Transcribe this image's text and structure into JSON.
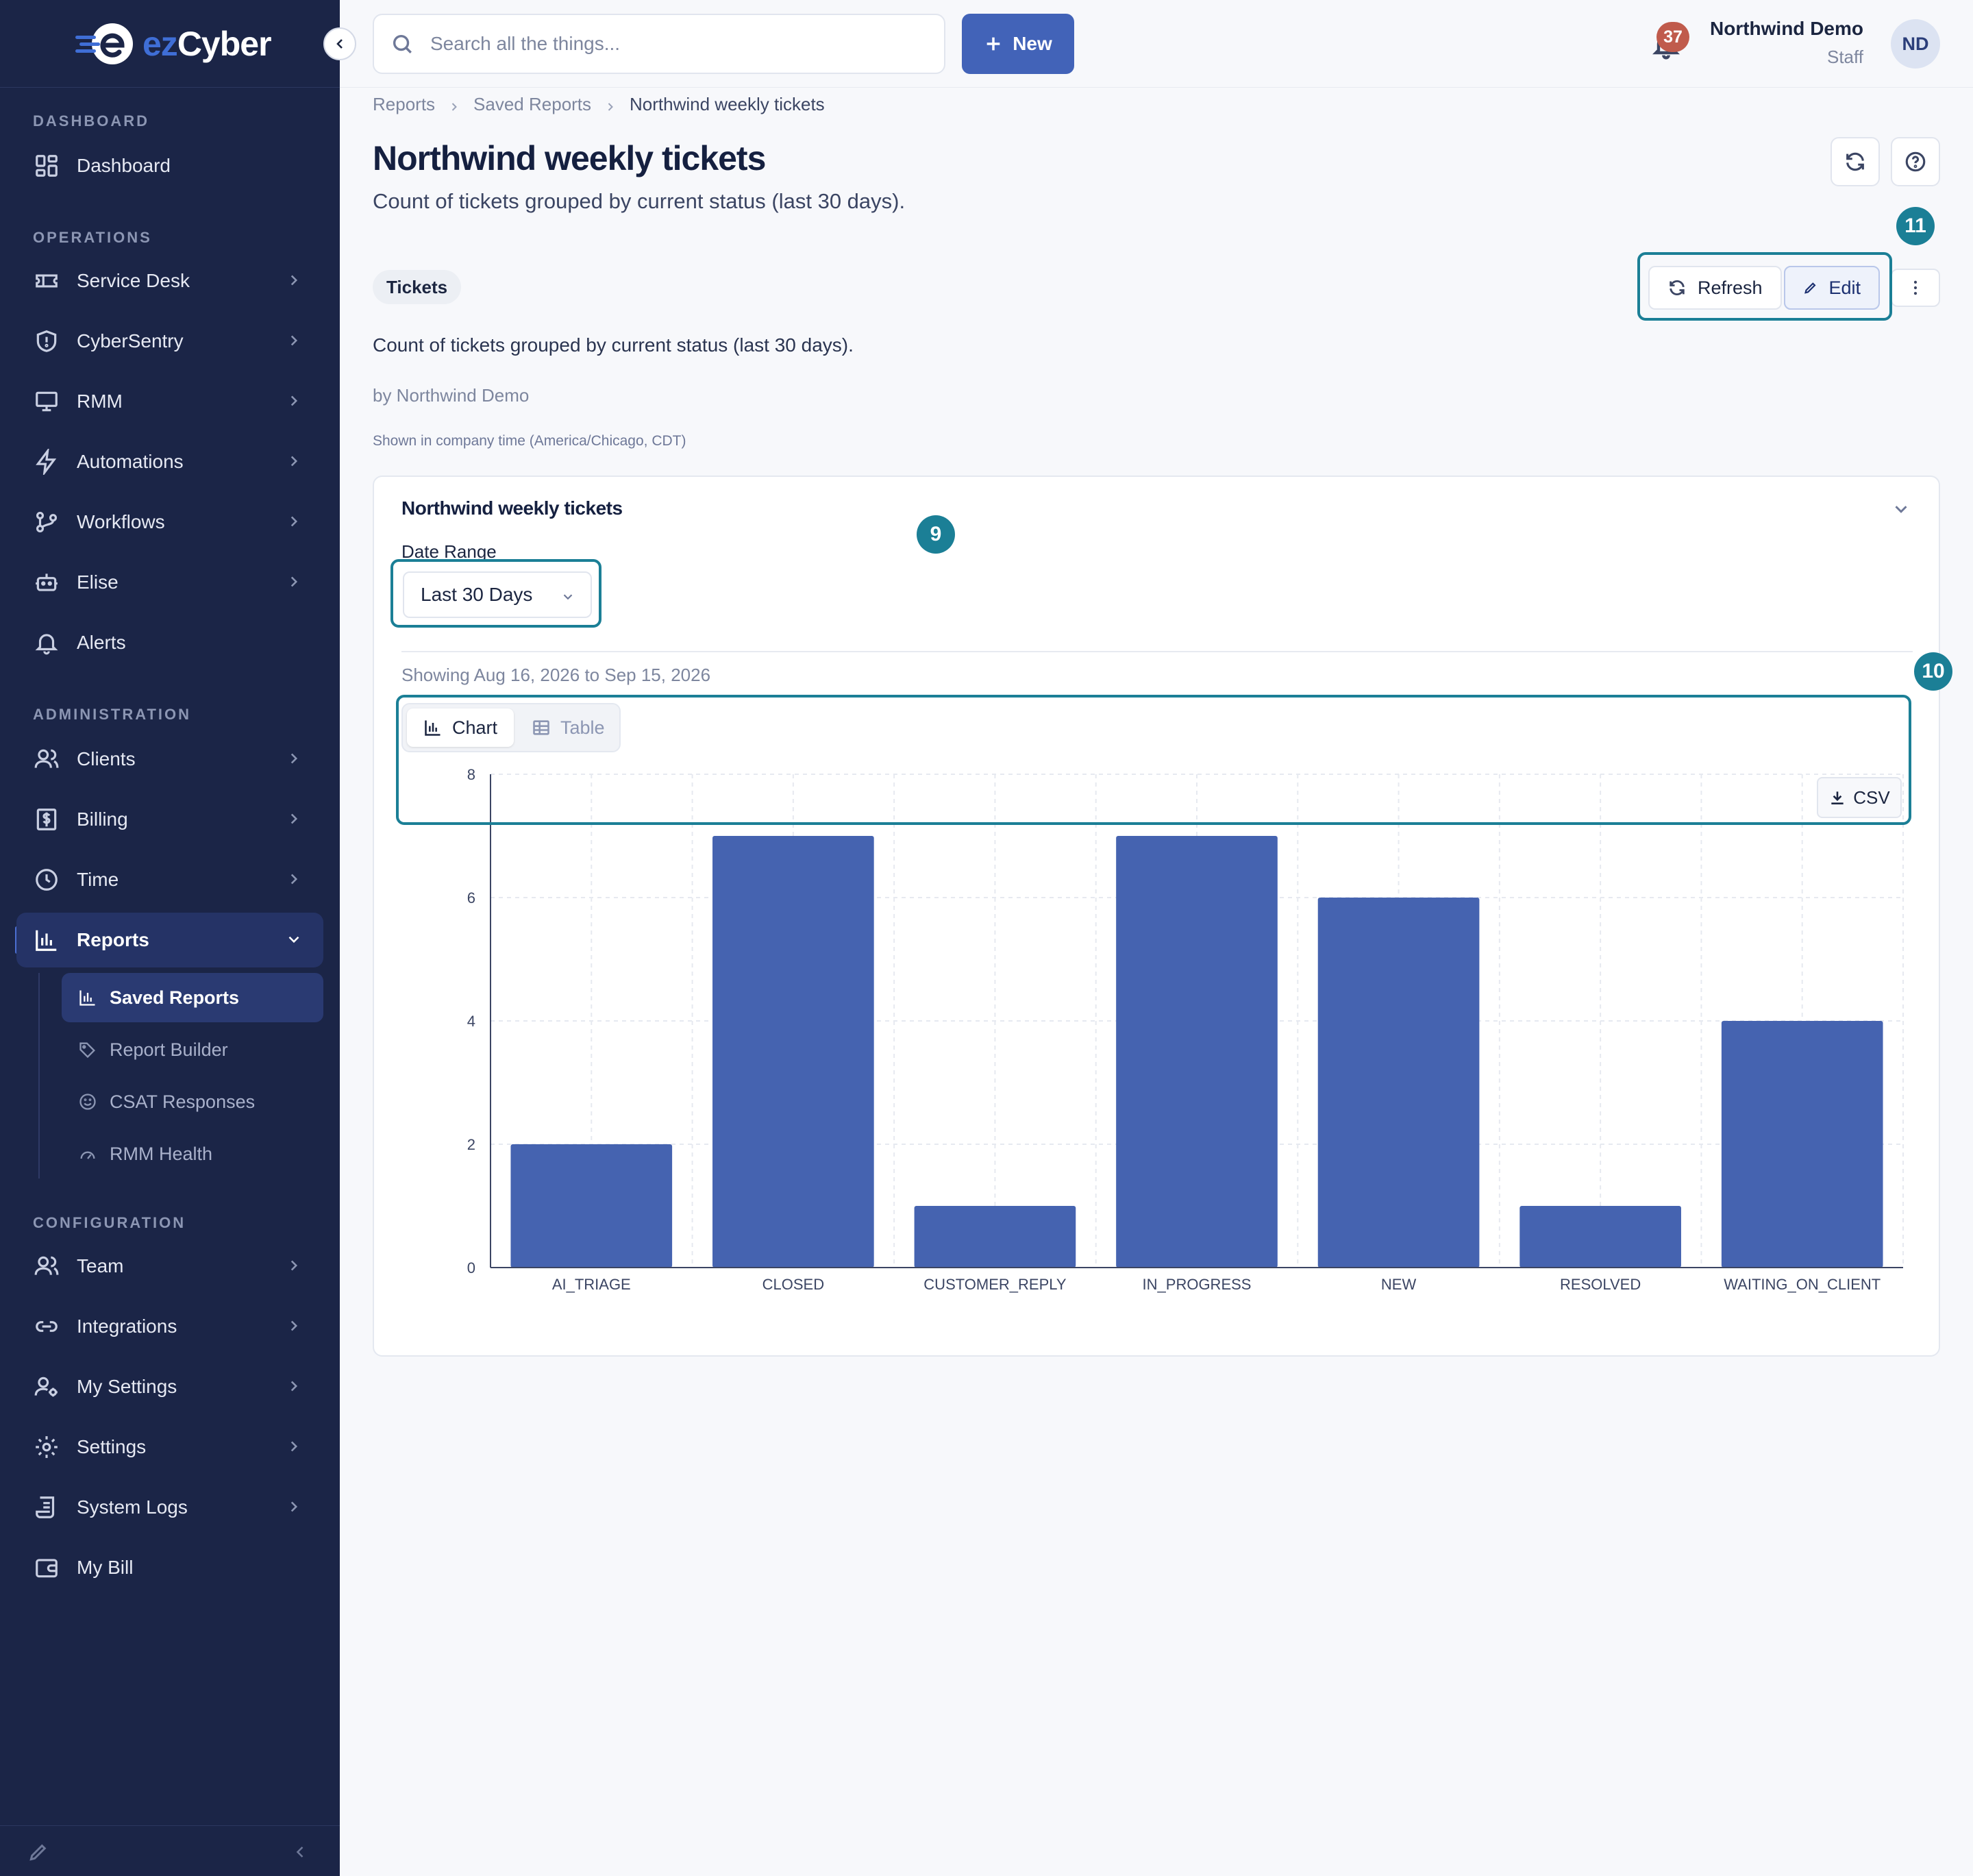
{
  "brand": {
    "logo_ez": "ez",
    "logo_cyber": "Cyber"
  },
  "sidebar": {
    "sections": {
      "dashboard": "DASHBOARD",
      "operations": "OPERATIONS",
      "administration": "ADMINISTRATION",
      "configuration": "CONFIGURATION"
    },
    "items": {
      "dashboard": "Dashboard",
      "service_desk": "Service Desk",
      "cybersentry": "CyberSentry",
      "rmm": "RMM",
      "automations": "Automations",
      "workflows": "Workflows",
      "elise": "Elise",
      "alerts": "Alerts",
      "clients": "Clients",
      "billing": "Billing",
      "time": "Time",
      "reports": "Reports",
      "team": "Team",
      "integrations": "Integrations",
      "my_settings": "My Settings",
      "settings": "Settings",
      "system_logs": "System Logs",
      "my_bill": "My Bill"
    },
    "reports_sub": {
      "saved_reports": "Saved Reports",
      "report_builder": "Report Builder",
      "csat_responses": "CSAT Responses",
      "rmm_health": "RMM Health"
    }
  },
  "topbar": {
    "search_placeholder": "Search all the things...",
    "new_label": "New",
    "notification_count": "37",
    "user_name": "Northwind Demo",
    "user_role": "Staff",
    "avatar_initials": "ND"
  },
  "breadcrumb": {
    "level1": "Reports",
    "level2": "Saved Reports",
    "current": "Northwind weekly tickets"
  },
  "page": {
    "title": "Northwind weekly tickets",
    "subtitle": "Count of tickets grouped by current status (last 30 days).",
    "tag": "Tickets",
    "description": "Count of tickets grouped by current status (last 30 days).",
    "byline": "by Northwind Demo",
    "timezone_note": "Shown in company time (America/Chicago, CDT)",
    "refresh_label": "Refresh",
    "edit_label": "Edit"
  },
  "annotations": {
    "badge_9": "9",
    "badge_10": "10",
    "badge_11": "11"
  },
  "card": {
    "title": "Northwind weekly tickets",
    "date_range_label": "Date Range",
    "date_range_value": "Last 30 Days",
    "showing": "Showing Aug 16, 2026 to Sep 15, 2026",
    "view_chart": "Chart",
    "view_table": "Table",
    "csv_label": "CSV"
  },
  "colors": {
    "bar": "#4563b0",
    "sidebar_bg": "#1b2547",
    "accent": "#4263b8",
    "highlight": "#1b7f96"
  },
  "chart_data": {
    "type": "bar",
    "categories": [
      "AI_TRIAGE",
      "CLOSED",
      "CUSTOMER_REPLY",
      "IN_PROGRESS",
      "NEW",
      "RESOLVED",
      "WAITING_ON_CLIENT"
    ],
    "values": [
      2,
      7,
      1,
      7,
      6,
      1,
      4
    ],
    "yticks": [
      0,
      2,
      4,
      6,
      8
    ],
    "ylim": [
      0,
      8
    ],
    "title": "",
    "xlabel": "",
    "ylabel": "",
    "grid": true
  }
}
